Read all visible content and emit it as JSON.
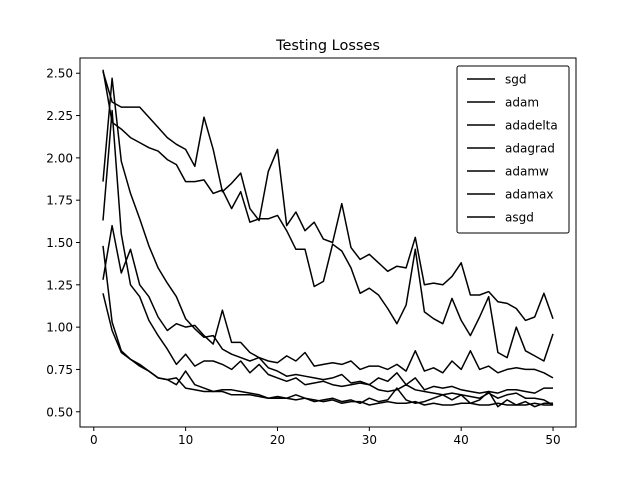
{
  "chart_data": {
    "type": "line",
    "title": "Testing Losses",
    "xlabel": "",
    "ylabel": "",
    "xlim": [
      -1.5,
      52.5
    ],
    "ylim": [
      0.41,
      2.59
    ],
    "x_ticks": [
      0,
      10,
      20,
      30,
      40,
      50
    ],
    "y_ticks": [
      0.5,
      0.75,
      1.0,
      1.25,
      1.5,
      1.75,
      2.0,
      2.25,
      2.5
    ],
    "x_tick_labels": [
      "0",
      "10",
      "20",
      "30",
      "40",
      "50"
    ],
    "y_tick_labels": [
      "0.50",
      "0.75",
      "1.00",
      "1.25",
      "1.50",
      "1.75",
      "2.00",
      "2.25",
      "2.50"
    ],
    "legend_position": "top-right",
    "grid": false,
    "line_color": "#000000",
    "x": [
      1,
      2,
      3,
      4,
      5,
      6,
      7,
      8,
      9,
      10,
      11,
      12,
      13,
      14,
      15,
      16,
      17,
      18,
      19,
      20,
      21,
      22,
      23,
      24,
      25,
      26,
      27,
      28,
      29,
      30,
      31,
      32,
      33,
      34,
      35,
      36,
      37,
      38,
      39,
      40,
      41,
      42,
      43,
      44,
      45,
      46,
      47,
      48,
      49,
      50
    ],
    "series": [
      {
        "name": "sgd",
        "values": [
          2.51,
          2.33,
          2.3,
          2.3,
          2.3,
          2.24,
          2.18,
          2.12,
          2.08,
          2.05,
          1.95,
          2.24,
          2.05,
          1.8,
          1.85,
          1.91,
          1.7,
          1.63,
          1.92,
          2.05,
          1.6,
          1.68,
          1.57,
          1.62,
          1.52,
          1.5,
          1.73,
          1.47,
          1.4,
          1.43,
          1.38,
          1.33,
          1.36,
          1.35,
          1.53,
          1.25,
          1.26,
          1.25,
          1.3,
          1.38,
          1.19,
          1.19,
          1.21,
          1.15,
          1.14,
          1.11,
          1.04,
          1.06,
          1.2,
          1.05
        ]
      },
      {
        "name": "adam",
        "values": [
          1.28,
          1.6,
          1.32,
          1.46,
          1.25,
          1.18,
          1.06,
          0.98,
          1.02,
          1.0,
          1.01,
          0.95,
          0.9,
          1.1,
          0.91,
          0.91,
          0.85,
          0.82,
          0.8,
          0.79,
          0.83,
          0.8,
          0.85,
          0.77,
          0.78,
          0.79,
          0.78,
          0.8,
          0.75,
          0.77,
          0.77,
          0.75,
          0.78,
          0.74,
          0.86,
          0.74,
          0.76,
          0.73,
          0.8,
          0.75,
          0.86,
          0.75,
          0.77,
          0.73,
          0.75,
          0.76,
          0.75,
          0.75,
          0.73,
          0.7
        ]
      },
      {
        "name": "adadelta",
        "values": [
          1.86,
          2.47,
          1.98,
          1.79,
          1.64,
          1.48,
          1.35,
          1.26,
          1.18,
          1.05,
          0.99,
          0.94,
          0.95,
          0.87,
          0.84,
          0.82,
          0.8,
          0.82,
          0.76,
          0.74,
          0.71,
          0.72,
          0.71,
          0.7,
          0.69,
          0.7,
          0.72,
          0.67,
          0.68,
          0.66,
          0.7,
          0.68,
          0.73,
          0.66,
          0.7,
          0.63,
          0.65,
          0.64,
          0.65,
          0.63,
          0.62,
          0.61,
          0.62,
          0.61,
          0.63,
          0.63,
          0.62,
          0.61,
          0.64,
          0.64
        ]
      },
      {
        "name": "adagrad",
        "values": [
          1.48,
          1.03,
          0.86,
          0.81,
          0.77,
          0.74,
          0.7,
          0.69,
          0.7,
          0.64,
          0.63,
          0.62,
          0.62,
          0.62,
          0.6,
          0.6,
          0.6,
          0.59,
          0.58,
          0.58,
          0.58,
          0.57,
          0.58,
          0.57,
          0.56,
          0.57,
          0.55,
          0.56,
          0.56,
          0.54,
          0.55,
          0.56,
          0.55,
          0.55,
          0.56,
          0.54,
          0.55,
          0.54,
          0.54,
          0.55,
          0.55,
          0.54,
          0.54,
          0.55,
          0.54,
          0.54,
          0.54,
          0.55,
          0.54,
          0.54
        ]
      },
      {
        "name": "adamw",
        "values": [
          1.63,
          2.28,
          1.55,
          1.25,
          1.18,
          1.04,
          0.95,
          0.87,
          0.78,
          0.84,
          0.77,
          0.8,
          0.8,
          0.78,
          0.75,
          0.8,
          0.73,
          0.78,
          0.72,
          0.7,
          0.68,
          0.7,
          0.66,
          0.67,
          0.68,
          0.66,
          0.65,
          0.66,
          0.67,
          0.66,
          0.63,
          0.62,
          0.63,
          0.66,
          0.63,
          0.62,
          0.61,
          0.6,
          0.61,
          0.6,
          0.59,
          0.58,
          0.61,
          0.58,
          0.6,
          0.61,
          0.58,
          0.58,
          0.57,
          0.54
        ]
      },
      {
        "name": "adamax",
        "values": [
          1.2,
          0.98,
          0.85,
          0.81,
          0.78,
          0.74,
          0.7,
          0.69,
          0.66,
          0.74,
          0.66,
          0.64,
          0.62,
          0.63,
          0.63,
          0.62,
          0.61,
          0.6,
          0.58,
          0.59,
          0.58,
          0.6,
          0.58,
          0.56,
          0.57,
          0.58,
          0.56,
          0.57,
          0.55,
          0.58,
          0.56,
          0.57,
          0.64,
          0.57,
          0.55,
          0.56,
          0.58,
          0.6,
          0.57,
          0.6,
          0.55,
          0.57,
          0.62,
          0.53,
          0.57,
          0.54,
          0.56,
          0.53,
          0.55,
          0.55
        ]
      },
      {
        "name": "asgd",
        "values": [
          2.52,
          2.21,
          2.17,
          2.12,
          2.09,
          2.06,
          2.04,
          1.99,
          1.96,
          1.86,
          1.86,
          1.87,
          1.79,
          1.81,
          1.7,
          1.8,
          1.62,
          1.64,
          1.64,
          1.66,
          1.57,
          1.46,
          1.46,
          1.24,
          1.27,
          1.49,
          1.45,
          1.35,
          1.2,
          1.23,
          1.19,
          1.11,
          1.02,
          1.13,
          1.46,
          1.09,
          1.05,
          1.02,
          1.17,
          1.04,
          0.95,
          1.06,
          1.18,
          0.85,
          0.82,
          1.0,
          0.86,
          0.83,
          0.8,
          0.96
        ]
      }
    ]
  }
}
